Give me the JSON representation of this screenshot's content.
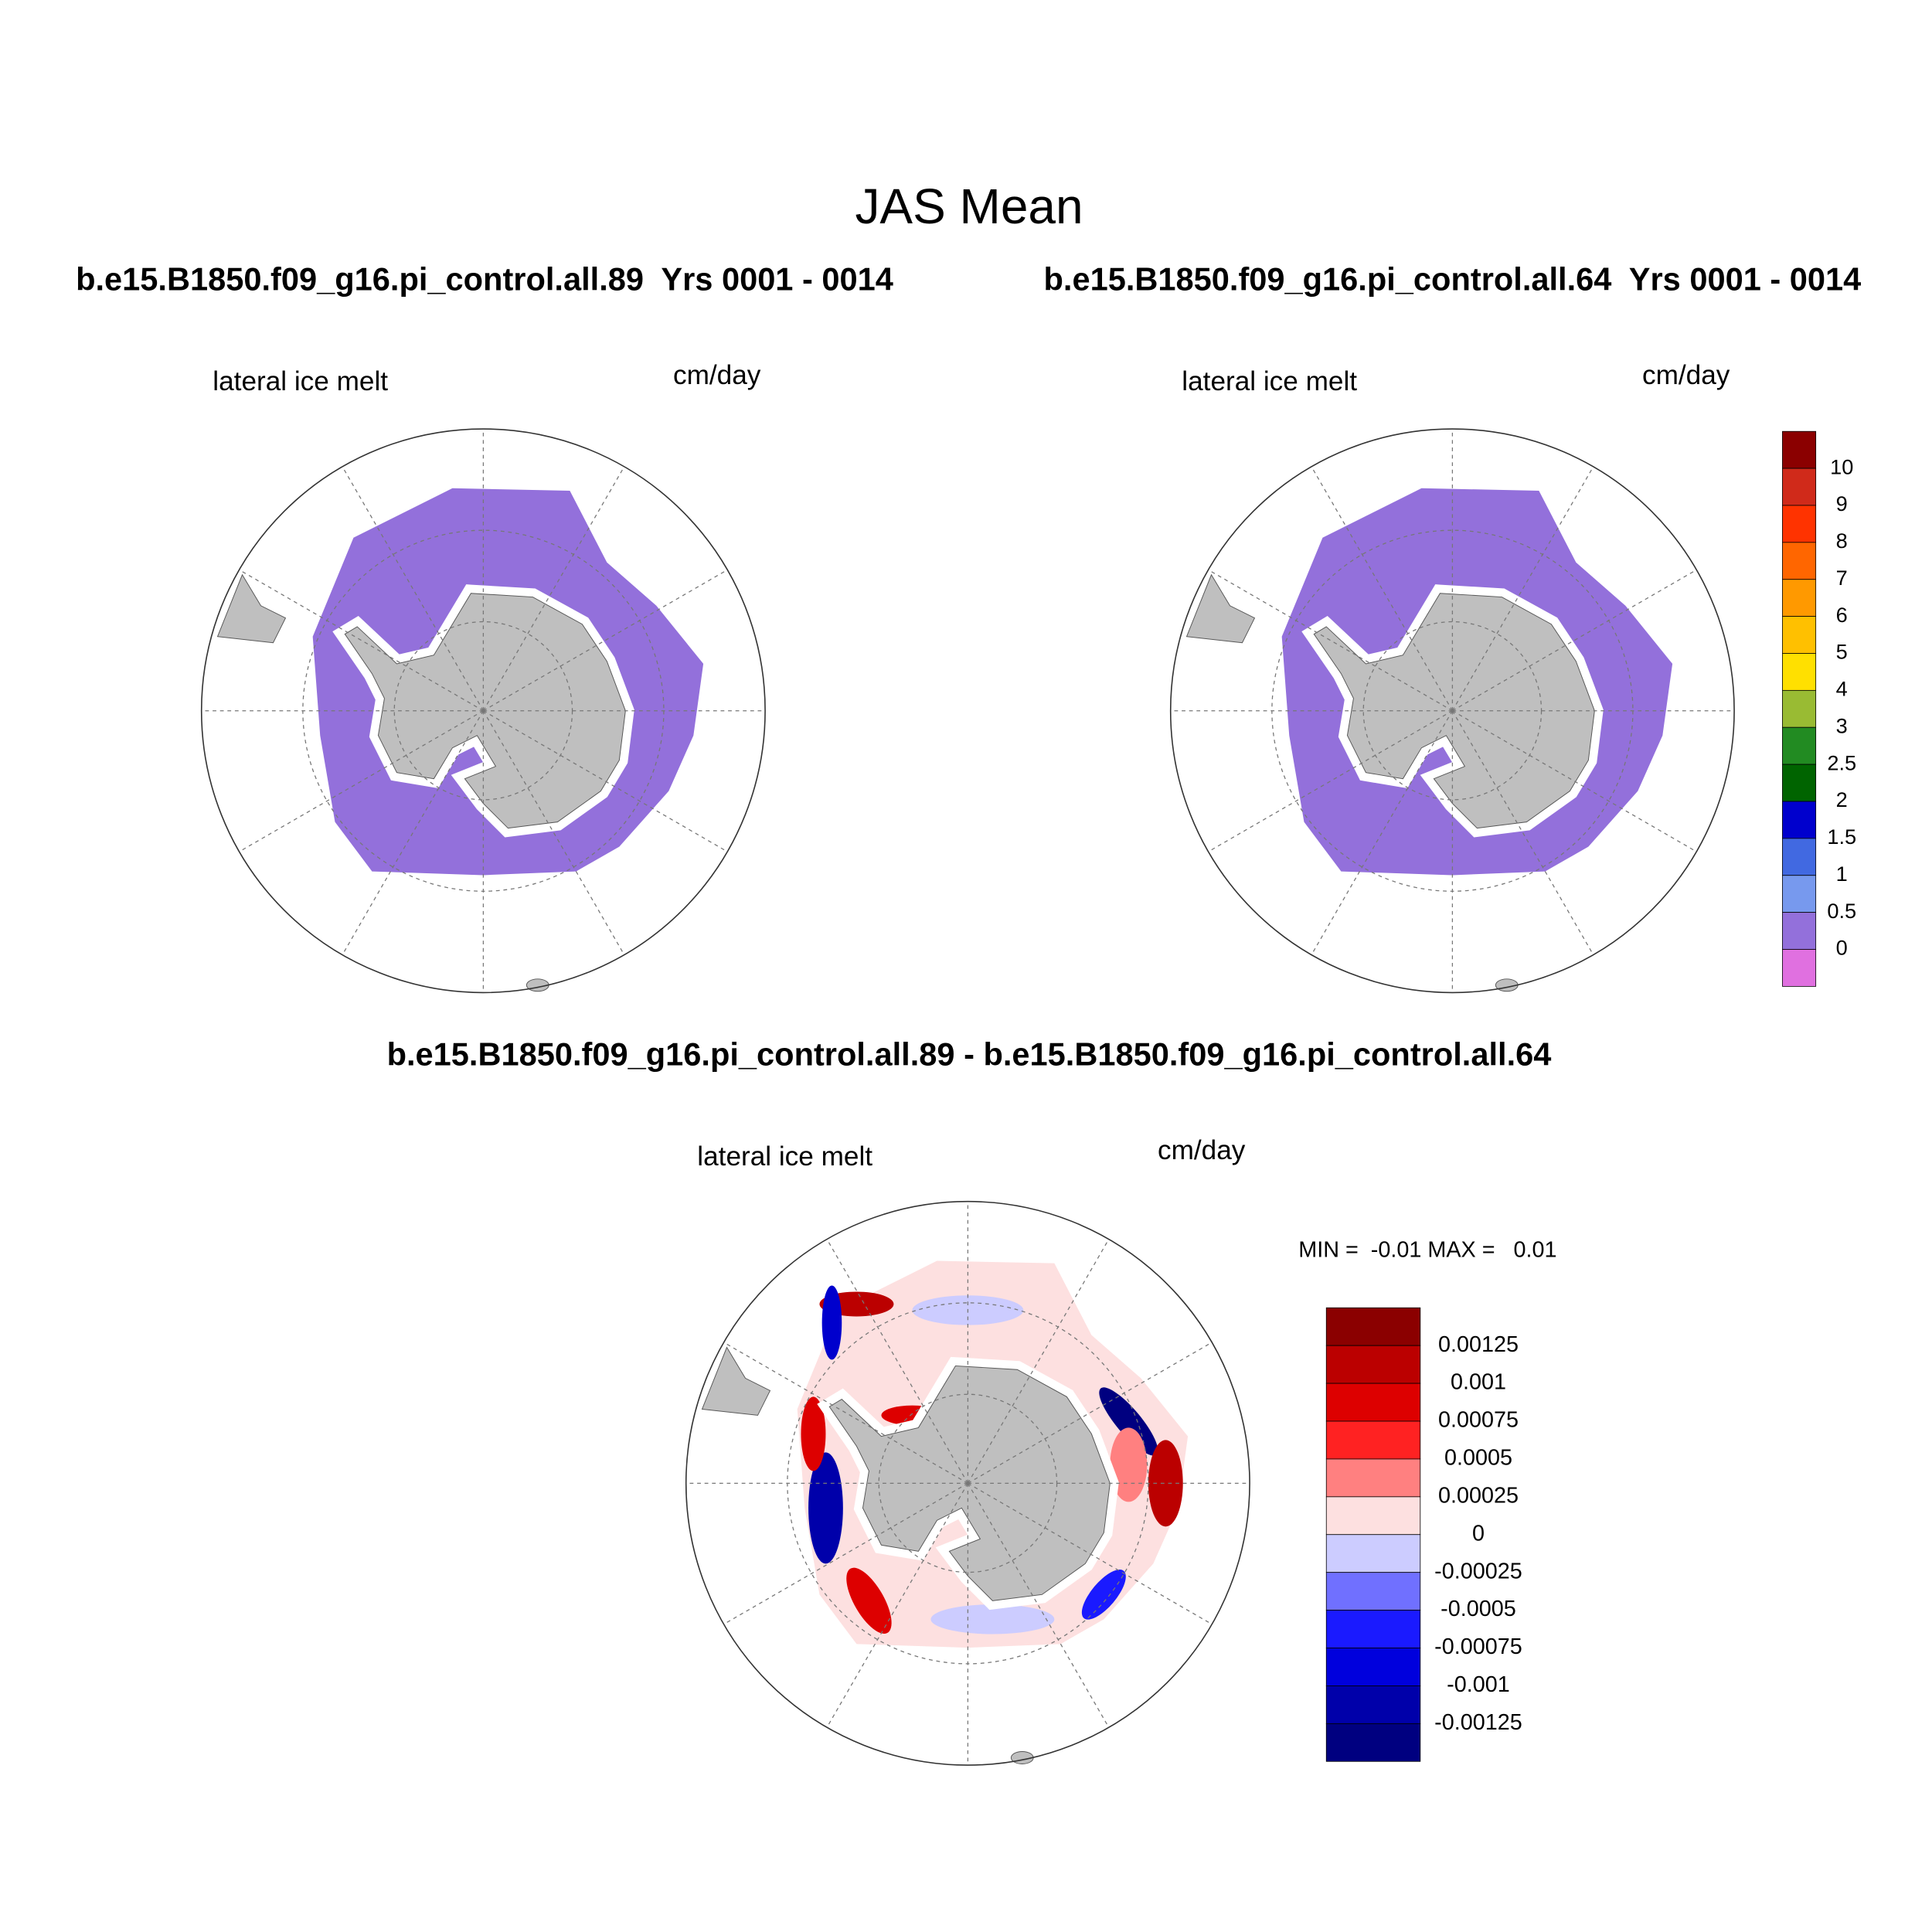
{
  "title": "JAS Mean",
  "panels": [
    {
      "title": "b.e15.B1850.f09_g16.pi_control.all.89  Yrs 0001 - 0014",
      "variable": "lateral ice melt",
      "units": "cm/day"
    },
    {
      "title": "b.e15.B1850.f09_g16.pi_control.all.64  Yrs 0001 - 0014",
      "variable": "lateral ice melt",
      "units": "cm/day"
    },
    {
      "title": "b.e15.B1850.f09_g16.pi_control.all.89 - b.e15.B1850.f09_g16.pi_control.all.64",
      "variable": "lateral ice melt",
      "units": "cm/day",
      "stats": "MIN =  -0.01 MAX =   0.01"
    }
  ],
  "colorbars": [
    {
      "colors": [
        "#8b0000",
        "#d02a1a",
        "#ff3300",
        "#ff6600",
        "#ff9900",
        "#ffc000",
        "#ffe000",
        "#99bb33",
        "#228b22",
        "#006400",
        "#0000cd",
        "#4169e1",
        "#7799ee",
        "#9370db",
        "#e070e0"
      ],
      "labels": [
        "10",
        "9",
        "8",
        "7",
        "6",
        "5",
        "4",
        "3",
        "2.5",
        "2",
        "1.5",
        "1",
        "0.5",
        "0"
      ]
    },
    {
      "colors": [
        "#8b0000",
        "#bb0000",
        "#dd0000",
        "#ff2222",
        "#ff8080",
        "#fde0e0",
        "#ccccff",
        "#7070ff",
        "#1a1aff",
        "#0000dd",
        "#0000aa",
        "#000080"
      ],
      "labels": [
        "0.00125",
        "0.001",
        "0.00075",
        "0.0005",
        "0.00025",
        "0",
        "-0.00025",
        "-0.0005",
        "-0.00075",
        "-0.001",
        "-0.00125"
      ]
    }
  ]
}
